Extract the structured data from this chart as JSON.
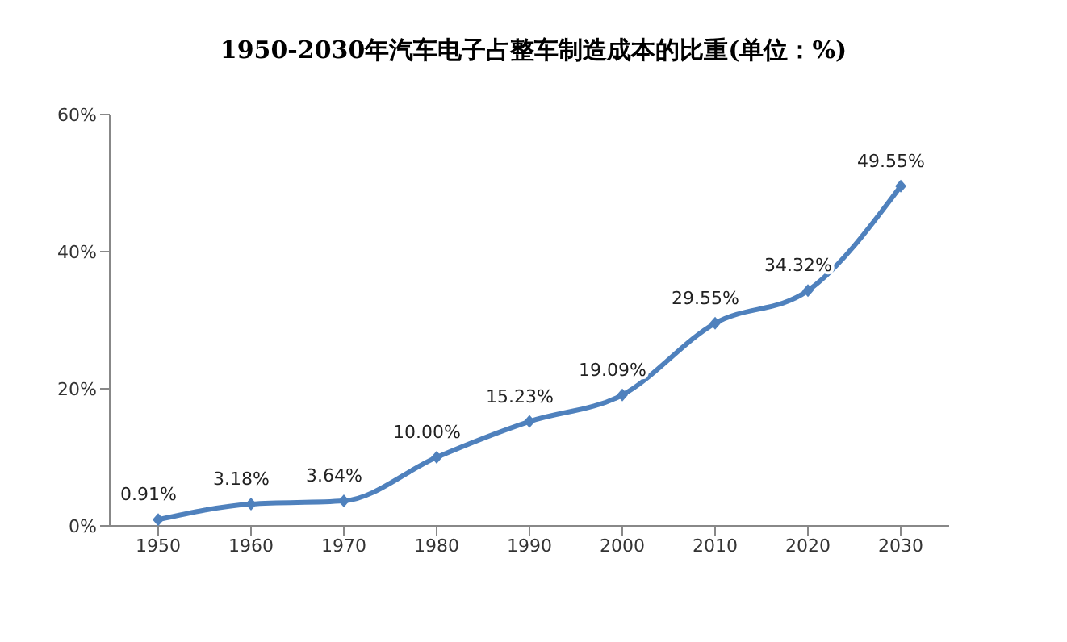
{
  "chart_data": {
    "type": "line",
    "title": "1950-2030年汽车电子占整车制造成本的比重(单位：%)",
    "categories": [
      "1950",
      "1960",
      "1970",
      "1980",
      "1990",
      "2000",
      "2010",
      "2020",
      "2030"
    ],
    "series": [
      {
        "color": "#4f81bd",
        "values": [
          0.91,
          3.18,
          3.64,
          10.0,
          15.23,
          19.09,
          29.55,
          34.32,
          49.55
        ],
        "value_labels": [
          "0.91%",
          "3.18%",
          "3.64%",
          "10.00%",
          "15.23%",
          "19.09%",
          "29.55%",
          "34.32%",
          "49.55%"
        ]
      }
    ],
    "ylim": [
      0,
      60
    ],
    "yticks": [
      {
        "value": 0,
        "label": "0%"
      },
      {
        "value": 20,
        "label": "20%"
      },
      {
        "value": 40,
        "label": "40%"
      },
      {
        "value": 60,
        "label": "60%"
      }
    ],
    "marker": "diamond",
    "legend": false,
    "grid": false
  }
}
